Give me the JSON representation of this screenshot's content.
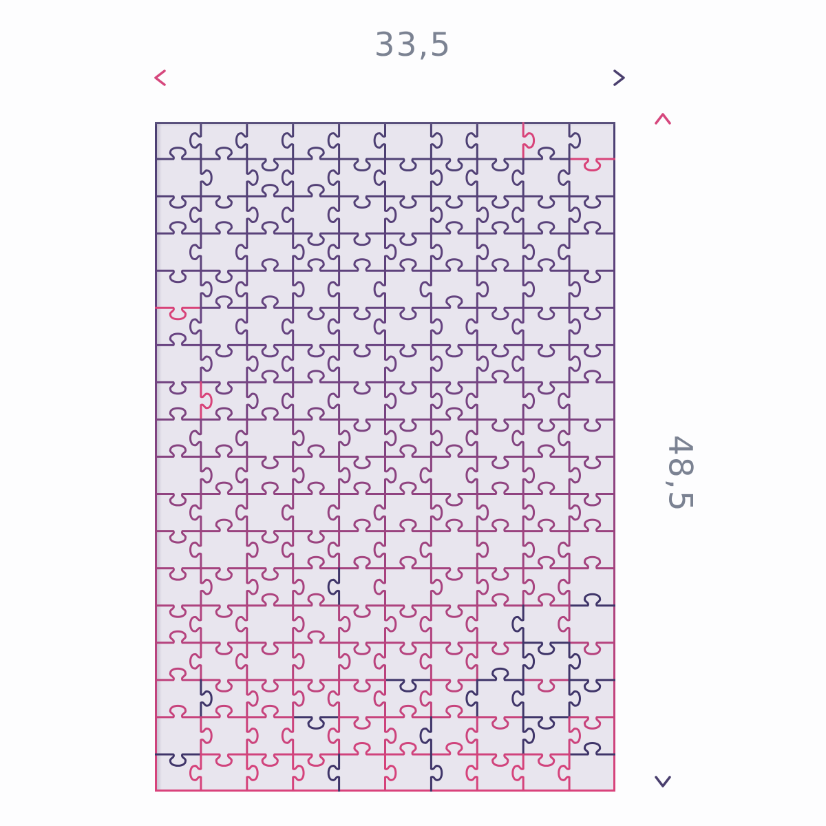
{
  "diagram": {
    "width": {
      "label": "33,5"
    },
    "height": {
      "label": "48,5"
    },
    "label_color": "#7b8292",
    "arrow": {
      "pink": "#d6477d",
      "purple": "#4a3f6e",
      "thickness": 3.5
    },
    "puzzle": {
      "background": "#e8e5ee",
      "cols": 10,
      "rows": 18,
      "line_width": 3,
      "gradient_stops": [
        "#4a4072",
        "#684381",
        "#a4437f",
        "#d9437b"
      ],
      "accent_pink": "#d84379",
      "accent_dark": "#3f3569",
      "pink_accents": [
        {
          "o": "h",
          "c": 0,
          "r": 5
        },
        {
          "o": "v",
          "c": 8,
          "r": 0
        },
        {
          "o": "h",
          "c": 9,
          "r": 1
        },
        {
          "o": "v",
          "c": 1,
          "r": 7
        }
      ],
      "dark_accents": [
        {
          "o": "v",
          "c": 8,
          "r": 13
        },
        {
          "o": "v",
          "c": 8,
          "r": 14
        },
        {
          "o": "v",
          "c": 8,
          "r": 15
        },
        {
          "o": "v",
          "c": 8,
          "r": 16
        },
        {
          "o": "h",
          "c": 8,
          "r": 14
        },
        {
          "o": "h",
          "c": 9,
          "r": 13
        },
        {
          "o": "v",
          "c": 9,
          "r": 15
        },
        {
          "o": "h",
          "c": 7,
          "r": 15
        },
        {
          "o": "v",
          "c": 1,
          "r": 15
        },
        {
          "o": "h",
          "c": 0,
          "r": 17
        },
        {
          "o": "v",
          "c": 4,
          "r": 17
        },
        {
          "o": "v",
          "c": 6,
          "r": 16
        },
        {
          "o": "h",
          "c": 3,
          "r": 16
        }
      ],
      "cluster": {
        "col_min": 8,
        "col_max": 9,
        "row_min": 13,
        "row_max": 16,
        "p": 0.45
      },
      "sprinkle": {
        "top_pink_p": 0.012,
        "bottom_dark_p": 0.025
      },
      "seed": 20
    }
  }
}
